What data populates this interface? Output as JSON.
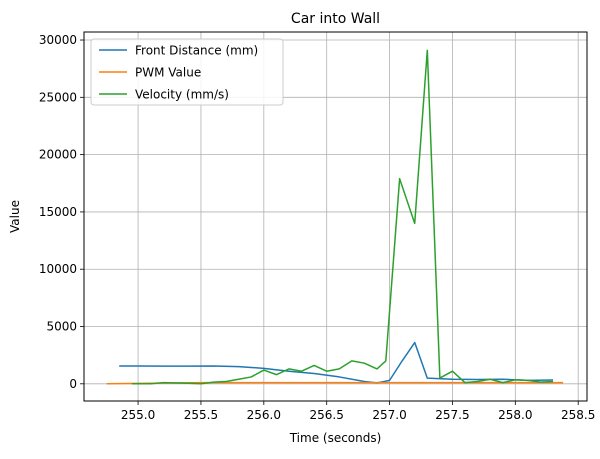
{
  "chart_data": {
    "type": "line",
    "title": "Car into Wall",
    "xlabel": "Time (seconds)",
    "ylabel": "Value",
    "xlim": [
      254.57,
      258.57
    ],
    "ylim": [
      -1500,
      30700
    ],
    "xticks": [
      255.0,
      255.5,
      256.0,
      256.5,
      257.0,
      257.5,
      258.0,
      258.5
    ],
    "xtick_labels": [
      "255.0",
      "255.5",
      "256.0",
      "256.5",
      "257.0",
      "257.5",
      "258.0",
      "258.5"
    ],
    "yticks": [
      0,
      5000,
      10000,
      15000,
      20000,
      25000,
      30000
    ],
    "ytick_labels": [
      "0",
      "5000",
      "10000",
      "15000",
      "20000",
      "25000",
      "30000"
    ],
    "grid": true,
    "legend_position": "upper-left",
    "series": [
      {
        "name": "Front Distance (mm)",
        "color": "#1f77b4",
        "x": [
          254.85,
          255.0,
          255.2,
          255.4,
          255.6,
          255.8,
          256.0,
          256.2,
          256.4,
          256.6,
          256.8,
          256.9,
          257.0,
          257.1,
          257.2,
          257.3,
          257.5,
          257.7,
          257.9,
          258.1,
          258.3
        ],
        "y": [
          1550,
          1550,
          1540,
          1540,
          1550,
          1500,
          1350,
          1100,
          900,
          600,
          200,
          80,
          300,
          2000,
          3600,
          500,
          400,
          380,
          400,
          300,
          330
        ]
      },
      {
        "name": "PWM Value",
        "color": "#ff7f0e",
        "x": [
          254.75,
          255.0,
          255.5,
          256.0,
          256.5,
          257.0,
          257.5,
          258.0,
          258.38
        ],
        "y": [
          0,
          40,
          100,
          100,
          100,
          100,
          100,
          100,
          100
        ]
      },
      {
        "name": "Velocity (mm/s)",
        "color": "#2ca02c",
        "x": [
          254.95,
          255.1,
          255.2,
          255.4,
          255.5,
          255.6,
          255.7,
          255.8,
          255.9,
          256.0,
          256.1,
          256.2,
          256.3,
          256.4,
          256.5,
          256.6,
          256.7,
          256.8,
          256.9,
          256.97,
          257.08,
          257.2,
          257.3,
          257.4,
          257.5,
          257.6,
          257.7,
          257.8,
          257.9,
          258.0,
          258.1,
          258.2,
          258.3
        ],
        "y": [
          0,
          0,
          100,
          50,
          0,
          150,
          200,
          400,
          600,
          1200,
          800,
          1300,
          1100,
          1600,
          1100,
          1300,
          2000,
          1800,
          1300,
          2000,
          17900,
          14000,
          29100,
          500,
          1100,
          100,
          200,
          400,
          100,
          350,
          300,
          150,
          200
        ]
      }
    ]
  }
}
